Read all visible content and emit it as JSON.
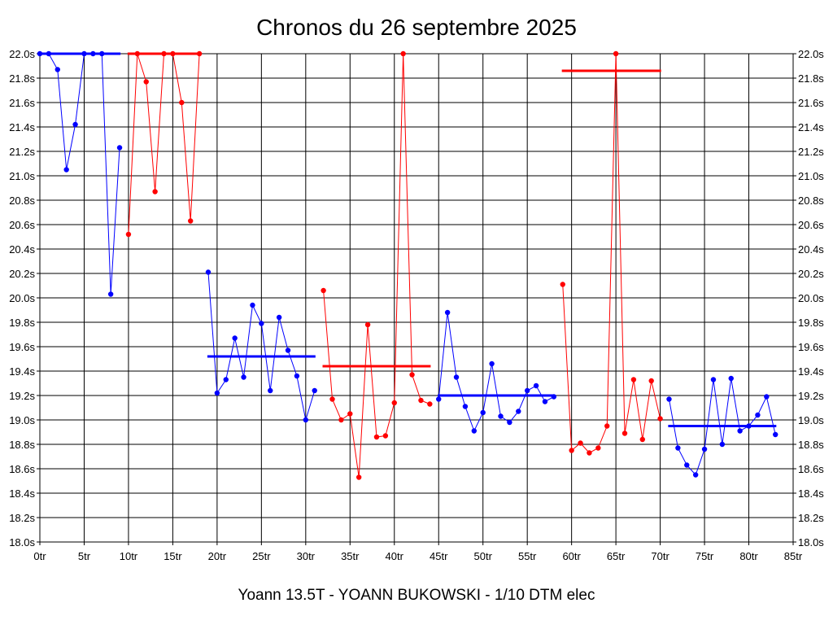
{
  "title": "Chronos du 26 septembre 2025",
  "footer": "Yoann 13.5T - YOANN BUKOWSKI - 1/10 DTM elec",
  "colors": {
    "red": "#ff0000",
    "blue": "#0000ff",
    "grid": "#000000"
  },
  "chart_data": {
    "type": "line",
    "title": "Chronos du 26 septembre 2025",
    "xlim": [
      0,
      85
    ],
    "ylim": [
      18.0,
      22.0
    ],
    "x_ticks": [
      "0tr",
      "5tr",
      "10tr",
      "15tr",
      "20tr",
      "25tr",
      "30tr",
      "35tr",
      "40tr",
      "45tr",
      "50tr",
      "55tr",
      "60tr",
      "65tr",
      "70tr",
      "75tr",
      "80tr",
      "85tr"
    ],
    "y_ticks": [
      "18.0s",
      "18.2s",
      "18.4s",
      "18.6s",
      "18.8s",
      "19.0s",
      "19.2s",
      "19.4s",
      "19.6s",
      "19.8s",
      "20.0s",
      "20.2s",
      "20.4s",
      "20.6s",
      "20.8s",
      "21.0s",
      "21.2s",
      "21.4s",
      "21.6s",
      "21.8s",
      "22.0s"
    ],
    "grid": true,
    "series": [
      {
        "color": "#0000ff",
        "x": [
          0,
          1,
          2,
          3,
          4,
          5,
          6,
          7,
          8,
          9
        ],
        "values": [
          22.0,
          22.0,
          21.87,
          21.05,
          21.42,
          22.0,
          22.0,
          22.0,
          20.03,
          21.23
        ],
        "average": 22.0
      },
      {
        "color": "#ff0000",
        "x": [
          10,
          11,
          12,
          13,
          14,
          15,
          16,
          17,
          18
        ],
        "values": [
          20.52,
          22.0,
          21.77,
          20.87,
          22.0,
          22.0,
          21.6,
          20.63,
          22.0
        ],
        "average": 22.0
      },
      {
        "color": "#0000ff",
        "x": [
          19,
          20,
          21,
          22,
          23,
          24,
          25,
          26,
          27,
          28,
          29,
          30,
          31
        ],
        "values": [
          20.21,
          19.22,
          19.33,
          19.67,
          19.35,
          19.94,
          19.79,
          19.24,
          19.84,
          19.57,
          19.36,
          19.0,
          19.24
        ],
        "average": 19.52
      },
      {
        "color": "#ff0000",
        "x": [
          32,
          33,
          34,
          35,
          36,
          37,
          38,
          39,
          40,
          41,
          42,
          43,
          44
        ],
        "values": [
          20.06,
          19.17,
          19.0,
          19.05,
          18.53,
          19.78,
          18.86,
          18.87,
          19.14,
          22.0,
          19.37,
          19.16,
          19.13
        ],
        "average": 19.44
      },
      {
        "color": "#0000ff",
        "x": [
          45,
          46,
          47,
          48,
          49,
          50,
          51,
          52,
          53,
          54,
          55,
          56,
          57,
          58
        ],
        "values": [
          19.17,
          19.88,
          19.35,
          19.11,
          18.91,
          19.06,
          19.46,
          19.03,
          18.98,
          19.07,
          19.24,
          19.28,
          19.15,
          19.19
        ],
        "average": 19.2
      },
      {
        "color": "#ff0000",
        "x": [
          59,
          60,
          61,
          62,
          63,
          64,
          65,
          66,
          67,
          68,
          69,
          70
        ],
        "values": [
          20.11,
          18.75,
          18.81,
          18.73,
          18.77,
          18.95,
          22.0,
          18.89,
          19.33,
          18.84,
          19.32,
          19.01
        ],
        "average": 21.86
      },
      {
        "color": "#0000ff",
        "x": [
          71,
          72,
          73,
          74,
          75,
          76,
          77,
          78,
          79,
          80,
          81,
          82,
          83
        ],
        "values": [
          19.17,
          18.77,
          18.63,
          18.55,
          18.76,
          19.33,
          18.8,
          19.34,
          18.91,
          18.95,
          19.04,
          19.19,
          18.88
        ],
        "average": 18.95
      }
    ]
  }
}
